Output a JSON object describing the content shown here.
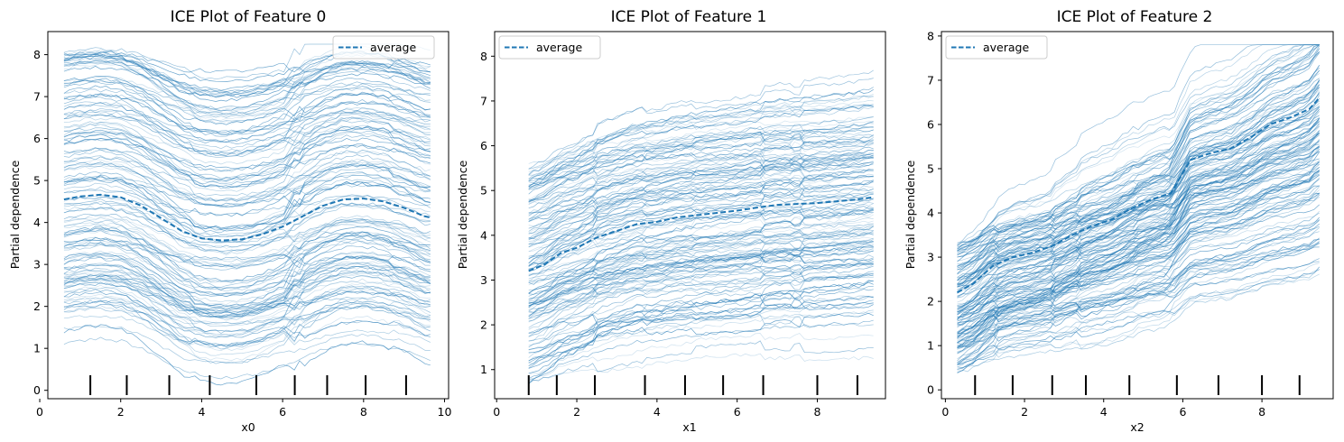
{
  "chart_data": [
    {
      "type": "line",
      "title": "ICE Plot of Feature 0",
      "xlabel": "x0",
      "ylabel": "Partial dependence",
      "xlim": [
        0.2,
        10.1
      ],
      "ylim": [
        -0.2,
        8.55
      ],
      "xticks": [
        0,
        2,
        4,
        6,
        8,
        10
      ],
      "yticks": [
        0,
        1,
        2,
        3,
        4,
        5,
        6,
        7,
        8
      ],
      "series": [
        {
          "name": "average",
          "style": "dashed",
          "x": [
            0.6,
            1.0,
            1.5,
            2.0,
            2.5,
            3.0,
            3.5,
            4.0,
            4.5,
            5.0,
            5.5,
            6.0,
            6.5,
            7.0,
            7.5,
            8.0,
            8.5,
            9.0,
            9.5,
            9.65
          ],
          "y": [
            4.55,
            4.62,
            4.66,
            4.6,
            4.4,
            4.1,
            3.8,
            3.62,
            3.57,
            3.6,
            3.72,
            3.9,
            4.15,
            4.4,
            4.55,
            4.57,
            4.5,
            4.35,
            4.15,
            4.12
          ]
        }
      ],
      "ice_curves": {
        "count": 150,
        "y_start_range": [
          1.1,
          8.1
        ],
        "shape": "dip around x0=4-5, bump around x0=7-8"
      },
      "rug": [
        1.25,
        2.15,
        3.2,
        4.2,
        5.35,
        6.3,
        7.1,
        8.05,
        9.05
      ],
      "legend": {
        "entry": "average",
        "loc": "upper right"
      }
    },
    {
      "type": "line",
      "title": "ICE Plot of Feature 1",
      "xlabel": "x1",
      "ylabel": "Partial dependence",
      "xlim": [
        -0.05,
        9.7
      ],
      "ylim": [
        0.35,
        8.55
      ],
      "xticks": [
        0,
        2,
        4,
        6,
        8
      ],
      "yticks": [
        1,
        2,
        3,
        4,
        5,
        6,
        7,
        8
      ],
      "series": [
        {
          "name": "average",
          "style": "dashed",
          "x": [
            0.8,
            1.2,
            1.6,
            2.0,
            2.5,
            3.0,
            3.5,
            4.0,
            4.5,
            5.0,
            5.5,
            6.0,
            6.5,
            7.0,
            7.5,
            8.0,
            8.5,
            9.0,
            9.4
          ],
          "y": [
            3.2,
            3.35,
            3.6,
            3.72,
            3.95,
            4.1,
            4.25,
            4.3,
            4.4,
            4.45,
            4.5,
            4.55,
            4.62,
            4.68,
            4.7,
            4.72,
            4.76,
            4.8,
            4.85
          ]
        }
      ],
      "ice_curves": {
        "count": 150,
        "y_start_range": [
          0.7,
          5.7
        ],
        "shape": "increasing with steps near x1=1.5, 2.3, 3.2"
      },
      "rug": [
        0.8,
        1.5,
        2.45,
        3.7,
        4.7,
        5.65,
        6.65,
        8.0,
        9.0
      ],
      "legend": {
        "entry": "average",
        "loc": "upper left"
      }
    },
    {
      "type": "line",
      "title": "ICE Plot of Feature 2",
      "xlabel": "x2",
      "ylabel": "Partial dependence",
      "xlim": [
        -0.1,
        9.8
      ],
      "ylim": [
        -0.2,
        8.1
      ],
      "xticks": [
        0,
        2,
        4,
        6,
        8
      ],
      "yticks": [
        0,
        1,
        2,
        3,
        4,
        5,
        6,
        7,
        8
      ],
      "series": [
        {
          "name": "average",
          "style": "dashed",
          "x": [
            0.3,
            0.7,
            1.2,
            1.7,
            2.2,
            2.7,
            3.2,
            3.7,
            4.2,
            4.7,
            5.2,
            5.7,
            6.2,
            6.7,
            7.2,
            7.7,
            8.2,
            8.7,
            9.2,
            9.45
          ],
          "y": [
            2.2,
            2.4,
            2.8,
            3.0,
            3.1,
            3.25,
            3.5,
            3.7,
            3.85,
            4.1,
            4.3,
            4.45,
            5.2,
            5.35,
            5.45,
            5.7,
            6.0,
            6.15,
            6.35,
            6.6
          ]
        }
      ],
      "ice_curves": {
        "count": 150,
        "y_start_range": [
          0.3,
          3.3
        ],
        "shape": "increasing step-like from ~1.5 to ~7"
      },
      "rug": [
        0.75,
        1.7,
        2.7,
        3.55,
        4.65,
        5.85,
        6.9,
        8.0,
        8.95
      ],
      "legend": {
        "entry": "average",
        "loc": "upper left"
      }
    }
  ],
  "colors": {
    "accent": "#1f77b4",
    "ice": "#1f77b4",
    "rug": "#000000",
    "frame": "#000000"
  }
}
